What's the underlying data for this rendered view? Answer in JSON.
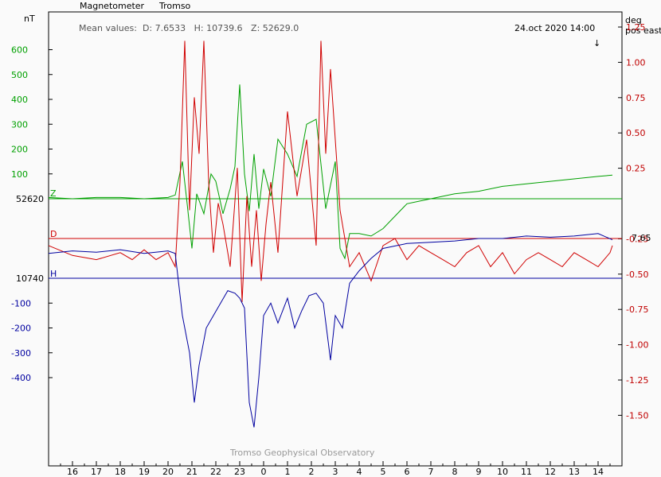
{
  "chart_data": {
    "type": "line",
    "title": "Magnetometer",
    "station": "Tromso",
    "mean_values_text": "Mean values:  D: 7.6533   H: 10739.6   Z: 52629.0",
    "date_label": "24.oct 2020 14:00",
    "arrow_glyph": "↓",
    "watermark": "Tromso Geophysical Observatory",
    "left_unit": "nT",
    "right_unit_line1": "deg",
    "right_unit_line2": "pos east",
    "x_ticks": [
      "16",
      "17",
      "18",
      "19",
      "20",
      "21",
      "22",
      "23",
      "0",
      "1",
      "2",
      "3",
      "4",
      "5",
      "6",
      "7",
      "8",
      "9",
      "10",
      "11",
      "12",
      "13",
      "14"
    ],
    "left_ticks_green": [
      "600",
      "500",
      "400",
      "300",
      "200",
      "100"
    ],
    "left_ticks_blue": [
      "-100",
      "-200",
      "-300",
      "-400"
    ],
    "baseline_z_label": "52620",
    "baseline_h_label": "10740",
    "baseline_d_label": "7.65",
    "right_ticks": [
      "1.25",
      "1.00",
      "0.75",
      "0.50",
      "0.25",
      "-0.25",
      "-0.50",
      "-0.75",
      "-1.00",
      "-1.25",
      "-1.50"
    ],
    "series": [
      {
        "name": "Z",
        "color": "#00a000",
        "unit": "nT",
        "baseline": 52620,
        "x": [
          15,
          16,
          17,
          18,
          19,
          20,
          20.3,
          20.6,
          20.8,
          21,
          21.2,
          21.5,
          21.8,
          22,
          22.3,
          22.6,
          22.8,
          23,
          23.2,
          23.4,
          23.6,
          23.8,
          24,
          24.3,
          24.6,
          25,
          25.4,
          25.8,
          26.2,
          26.6,
          27,
          27.2,
          27.4,
          27.6,
          28,
          28.5,
          29,
          29.5,
          30,
          31,
          32,
          33,
          34,
          35,
          36,
          37,
          38,
          38.6
        ],
        "values": [
          5,
          0,
          5,
          5,
          0,
          5,
          15,
          150,
          -20,
          -200,
          20,
          -60,
          100,
          70,
          -60,
          40,
          130,
          460,
          100,
          -50,
          180,
          -40,
          120,
          10,
          240,
          180,
          90,
          300,
          320,
          -40,
          150,
          -200,
          -240,
          -140,
          -140,
          -150,
          -120,
          -70,
          -20,
          0,
          20,
          30,
          50,
          60,
          70,
          80,
          90,
          95
        ]
      },
      {
        "name": "D",
        "color": "#d00000",
        "unit": "deg",
        "baseline": 7.65,
        "x": [
          15,
          16,
          17,
          18,
          18.5,
          19,
          19.5,
          20,
          20.3,
          20.5,
          20.7,
          20.9,
          21.1,
          21.3,
          21.5,
          21.7,
          21.9,
          22.1,
          22.3,
          22.6,
          22.9,
          23.1,
          23.3,
          23.5,
          23.7,
          23.9,
          24.1,
          24.3,
          24.6,
          25,
          25.4,
          25.8,
          26.2,
          26.4,
          26.6,
          26.8,
          27.2,
          27.6,
          28,
          28.5,
          29,
          29.5,
          30,
          30.5,
          31,
          31.5,
          32,
          32.5,
          33,
          33.5,
          34,
          34.5,
          35,
          35.5,
          36,
          36.5,
          37,
          37.5,
          38,
          38.5,
          38.6
        ],
        "values": [
          -0.05,
          -0.12,
          -0.15,
          -0.1,
          -0.15,
          -0.08,
          -0.15,
          -0.1,
          -0.2,
          0.4,
          1.4,
          0.2,
          1.0,
          0.6,
          1.4,
          0.4,
          -0.1,
          0.25,
          0.1,
          -0.2,
          0.5,
          -0.45,
          0.3,
          -0.2,
          0.2,
          -0.3,
          0.1,
          0.4,
          -0.1,
          0.9,
          0.3,
          0.7,
          -0.05,
          1.4,
          0.6,
          1.2,
          0.2,
          -0.2,
          -0.1,
          -0.3,
          -0.05,
          0.0,
          -0.15,
          -0.05,
          -0.1,
          -0.15,
          -0.2,
          -0.1,
          -0.05,
          -0.2,
          -0.1,
          -0.25,
          -0.15,
          -0.1,
          -0.15,
          -0.2,
          -0.1,
          -0.15,
          -0.2,
          -0.1,
          -0.05
        ]
      },
      {
        "name": "H",
        "color": "#0000a0",
        "unit": "nT",
        "baseline": 10740,
        "x": [
          15,
          16,
          17,
          18,
          19,
          20,
          20.3,
          20.6,
          20.9,
          21.1,
          21.3,
          21.6,
          21.9,
          22.2,
          22.5,
          22.8,
          23,
          23.2,
          23.4,
          23.6,
          23.8,
          24,
          24.3,
          24.6,
          25,
          25.3,
          25.6,
          25.9,
          26.2,
          26.5,
          26.8,
          27,
          27.3,
          27.6,
          28,
          28.5,
          29,
          29.5,
          30,
          31,
          32,
          33,
          34,
          35,
          36,
          37,
          38,
          38.6
        ],
        "values": [
          100,
          110,
          105,
          115,
          100,
          110,
          100,
          -150,
          -300,
          -500,
          -350,
          -200,
          -150,
          -100,
          -50,
          -60,
          -80,
          -120,
          -500,
          -600,
          -400,
          -150,
          -100,
          -180,
          -80,
          -200,
          -130,
          -70,
          -60,
          -100,
          -330,
          -150,
          -200,
          -20,
          30,
          80,
          120,
          130,
          140,
          145,
          150,
          160,
          160,
          170,
          165,
          170,
          180,
          155
        ]
      }
    ]
  }
}
